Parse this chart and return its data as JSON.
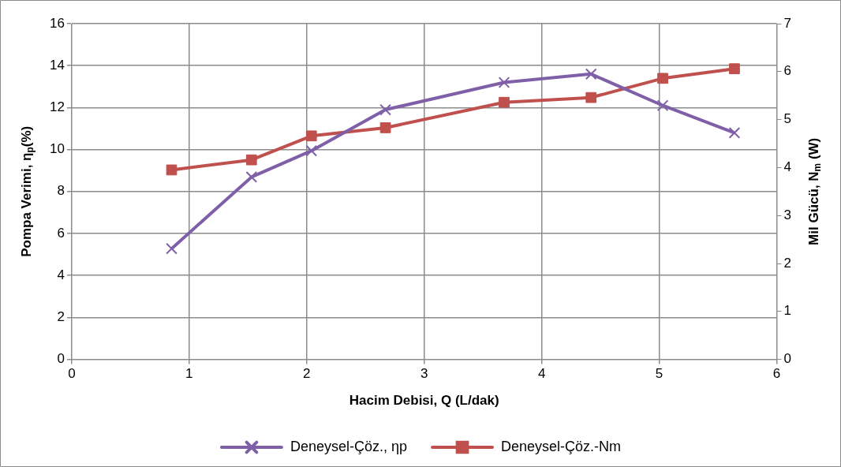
{
  "chart_data": {
    "type": "line",
    "xlabel": "Hacim Debisi, Q (L/dak)",
    "ylabel": "Pompa Verimi, η$_{p}$(%)",
    "y2label": "Mil Gücü, N$_{m}$ (W)",
    "x": [
      0.85,
      1.53,
      2.04,
      2.67,
      3.68,
      4.42,
      5.03,
      5.64
    ],
    "series": [
      {
        "name": "Deneysel-Çöz., ηp",
        "color": "#7f60a8",
        "marker": "cross",
        "values": [
          5.28,
          8.69,
          9.94,
          11.9,
          13.2,
          13.6,
          12.1,
          10.8
        ]
      },
      {
        "name": "Deneysel-Çöz.-Nm",
        "color": "#c0504d",
        "marker": "square",
        "axis": "y2",
        "values": [
          3.95,
          4.16,
          4.66,
          4.83,
          5.36,
          5.46,
          5.86,
          6.06
        ]
      }
    ],
    "xlim": [
      0,
      6
    ],
    "xticks": [
      0,
      1,
      2,
      3,
      4,
      5,
      6
    ],
    "ylim": [
      0,
      16
    ],
    "yticks": [
      0,
      2,
      4,
      6,
      8,
      10,
      12,
      14,
      16
    ],
    "y2lim": [
      0,
      7
    ],
    "y2ticks": [
      0,
      1,
      2,
      3,
      4,
      5,
      6,
      7
    ],
    "grid": true,
    "legend": "bottom",
    "line_style": "solid"
  }
}
